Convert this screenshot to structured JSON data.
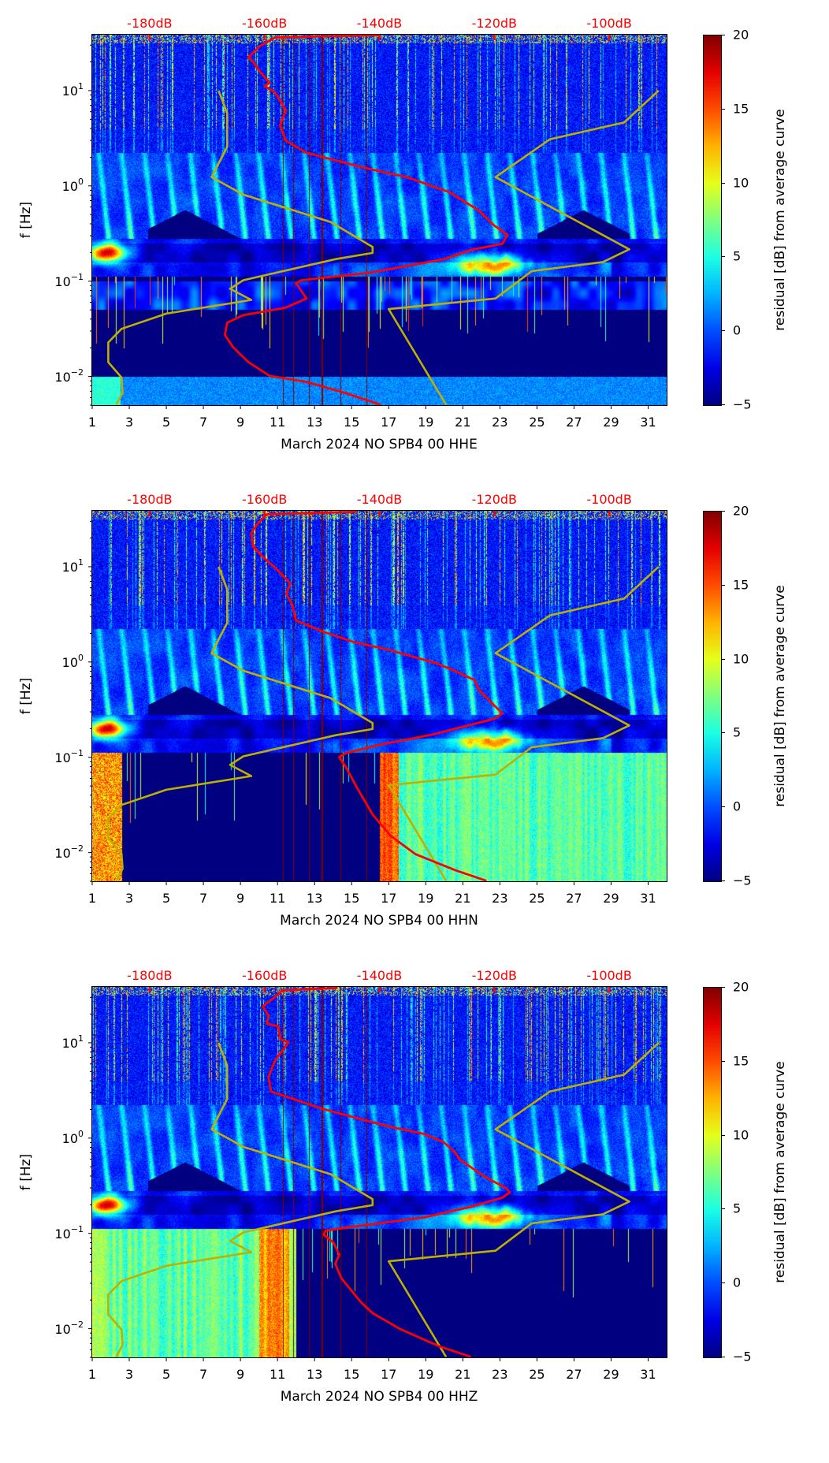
{
  "chart_data": {
    "type": "heatmap",
    "shared": {
      "ylabel": "f [Hz]",
      "yscale": "log",
      "ylim": [
        0.005,
        38.6
      ],
      "xlim": [
        1,
        32
      ],
      "x_ticks": [
        "1",
        "3",
        "5",
        "7",
        "9",
        "11",
        "13",
        "15",
        "17",
        "19",
        "21",
        "23",
        "25",
        "27",
        "29",
        "31"
      ],
      "x_tick_values": [
        1,
        3,
        5,
        7,
        9,
        11,
        13,
        15,
        17,
        19,
        21,
        23,
        25,
        27,
        29,
        31
      ],
      "y_ticks": [
        {
          "base": "10",
          "exp": "1",
          "value": 10
        },
        {
          "base": "10",
          "exp": "0",
          "value": 1
        },
        {
          "base": "10",
          "exp": "−1",
          "value": 0.1
        },
        {
          "base": "10",
          "exp": "−2",
          "value": 0.01
        }
      ],
      "top_axis": {
        "labels": [
          "-180dB",
          "-160dB",
          "-140dB",
          "-120dB",
          "-100dB"
        ],
        "values": [
          -180,
          -160,
          -140,
          -120,
          -100
        ],
        "range_db": [
          -190,
          -90
        ],
        "color": "#ff0000"
      },
      "colorbar": {
        "label": "residual [dB] from average curve",
        "ticks": [
          "20",
          "15",
          "10",
          "5",
          "0",
          "−5"
        ],
        "tick_values": [
          20,
          15,
          10,
          5,
          0,
          -5
        ],
        "range": [
          -5,
          20
        ],
        "colormap": "jet"
      },
      "noise_models": {
        "color": "#bfb000",
        "low_model_db_log10f": [
          [
            -168.0,
            1.0
          ],
          [
            -166.5,
            0.761
          ],
          [
            -166.5,
            0.411
          ],
          [
            -169.2,
            0.092
          ],
          [
            -163.7,
            -0.092
          ],
          [
            -148.5,
            -0.379
          ],
          [
            -141.2,
            -0.64
          ],
          [
            -141.2,
            -0.704
          ],
          [
            -147.6,
            -0.768
          ],
          [
            -163.7,
            -0.99
          ],
          [
            -166.0,
            -1.08
          ],
          [
            -162.3,
            -1.197
          ],
          [
            -177.1,
            -1.341
          ],
          [
            -184.9,
            -1.5
          ],
          [
            -187.2,
            -1.643
          ],
          [
            -187.2,
            -1.85
          ],
          [
            -184.9,
            -2.01
          ],
          [
            -184.7,
            -2.169
          ],
          [
            -185.8,
            -2.296
          ]
        ],
        "high_model_db_log10f": [
          [
            -91.4,
            1.0
          ],
          [
            -97.4,
            0.666
          ],
          [
            -110.3,
            0.49
          ],
          [
            -119.8,
            0.092
          ],
          [
            -96.5,
            -0.666
          ],
          [
            -101.1,
            -0.799
          ],
          [
            -113.5,
            -0.895
          ],
          [
            -119.8,
            -1.182
          ],
          [
            -138.4,
            -1.293
          ],
          [
            -128.4,
            -2.296
          ]
        ]
      }
    },
    "panels": [
      {
        "xlabel": "March 2024 NO SPB4 00 HHE",
        "average_curve_color": "#ff0000",
        "average_curve_db_log10f": [
          [
            -139.8,
            1.583
          ],
          [
            -158.2,
            1.557
          ],
          [
            -160.9,
            1.462
          ],
          [
            -162.8,
            1.35
          ],
          [
            -162.0,
            1.303
          ],
          [
            -160.9,
            1.207
          ],
          [
            -159.1,
            1.08
          ],
          [
            -160.0,
            1.048
          ],
          [
            -158.2,
            0.984
          ],
          [
            -156.3,
            0.793
          ],
          [
            -157.3,
            0.634
          ],
          [
            -156.3,
            0.475
          ],
          [
            -152.7,
            0.347
          ],
          [
            -142.5,
            0.188
          ],
          [
            -135.2,
            0.092
          ],
          [
            -127.8,
            -0.067
          ],
          [
            -122.7,
            -0.258
          ],
          [
            -120.0,
            -0.417
          ],
          [
            -117.7,
            -0.513
          ],
          [
            -118.6,
            -0.608
          ],
          [
            -124.1,
            -0.672
          ],
          [
            -128.7,
            -0.768
          ],
          [
            -141.6,
            -0.911
          ],
          [
            -153.6,
            -0.99
          ],
          [
            -154.5,
            -1.022
          ],
          [
            -152.7,
            -1.182
          ],
          [
            -156.3,
            -1.277
          ],
          [
            -163.7,
            -1.357
          ],
          [
            -166.5,
            -1.436
          ],
          [
            -166.9,
            -1.564
          ],
          [
            -165.5,
            -1.691
          ],
          [
            -162.8,
            -1.85
          ],
          [
            -159.1,
            -1.994
          ],
          [
            -152.7,
            -2.057
          ],
          [
            -146.2,
            -2.169
          ],
          [
            -139.8,
            -2.296
          ]
        ]
      },
      {
        "xlabel": "March 2024 NO SPB4 00 HHN",
        "average_curve_color": "#ff0000",
        "average_curve_db_log10f": [
          [
            -143.9,
            1.577
          ],
          [
            -159.6,
            1.549
          ],
          [
            -161.0,
            1.465
          ],
          [
            -162.3,
            1.354
          ],
          [
            -162.0,
            1.214
          ],
          [
            -160.3,
            1.103
          ],
          [
            -158.2,
            0.992
          ],
          [
            -155.5,
            0.825
          ],
          [
            -156.2,
            0.713
          ],
          [
            -155.2,
            0.602
          ],
          [
            -154.5,
            0.435
          ],
          [
            -150.0,
            0.323
          ],
          [
            -144.6,
            0.212
          ],
          [
            -138.4,
            0.128
          ],
          [
            -134.3,
            0.058
          ],
          [
            -130.2,
            -0.011
          ],
          [
            -126.8,
            -0.095
          ],
          [
            -123.4,
            -0.192
          ],
          [
            -122.7,
            -0.29
          ],
          [
            -121.4,
            -0.373
          ],
          [
            -118.6,
            -0.54
          ],
          [
            -120.0,
            -0.596
          ],
          [
            -125.5,
            -0.68
          ],
          [
            -130.9,
            -0.763
          ],
          [
            -140.5,
            -0.875
          ],
          [
            -145.9,
            -0.958
          ],
          [
            -147.0,
            -1.0
          ],
          [
            -145.9,
            -1.097
          ],
          [
            -143.9,
            -1.32
          ],
          [
            -141.2,
            -1.599
          ],
          [
            -138.1,
            -1.822
          ],
          [
            -133.7,
            -2.017
          ],
          [
            -126.8,
            -2.184
          ],
          [
            -121.4,
            -2.295
          ]
        ]
      },
      {
        "xlabel": "March 2024 NO SPB4 00 HHZ",
        "average_curve_color": "#ff0000",
        "average_curve_db_log10f": [
          [
            -147.3,
            1.577
          ],
          [
            -156.9,
            1.549
          ],
          [
            -158.2,
            1.479
          ],
          [
            -160.3,
            1.382
          ],
          [
            -159.3,
            1.284
          ],
          [
            -159.6,
            1.201
          ],
          [
            -157.6,
            1.173
          ],
          [
            -157.2,
            1.033
          ],
          [
            -155.8,
            1.006
          ],
          [
            -158.2,
            0.811
          ],
          [
            -159.3,
            0.643
          ],
          [
            -158.9,
            0.49
          ],
          [
            -155.5,
            0.421
          ],
          [
            -150.0,
            0.309
          ],
          [
            -143.2,
            0.198
          ],
          [
            -137.8,
            0.114
          ],
          [
            -132.3,
            0.045
          ],
          [
            -128.9,
            -0.039
          ],
          [
            -126.8,
            -0.15
          ],
          [
            -126.1,
            -0.22
          ],
          [
            -124.1,
            -0.304
          ],
          [
            -121.4,
            -0.415
          ],
          [
            -117.9,
            -0.526
          ],
          [
            -117.3,
            -0.568
          ],
          [
            -118.6,
            -0.624
          ],
          [
            -124.1,
            -0.721
          ],
          [
            -132.3,
            -0.833
          ],
          [
            -144.6,
            -0.93
          ],
          [
            -149.4,
            -0.972
          ],
          [
            -149.7,
            -1.014
          ],
          [
            -148.0,
            -1.097
          ],
          [
            -147.0,
            -1.223
          ],
          [
            -147.7,
            -1.32
          ],
          [
            -146.6,
            -1.474
          ],
          [
            -143.2,
            -1.724
          ],
          [
            -141.2,
            -1.836
          ],
          [
            -136.4,
            -2.003
          ],
          [
            -129.6,
            -2.184
          ],
          [
            -124.1,
            -2.295
          ]
        ]
      }
    ]
  }
}
